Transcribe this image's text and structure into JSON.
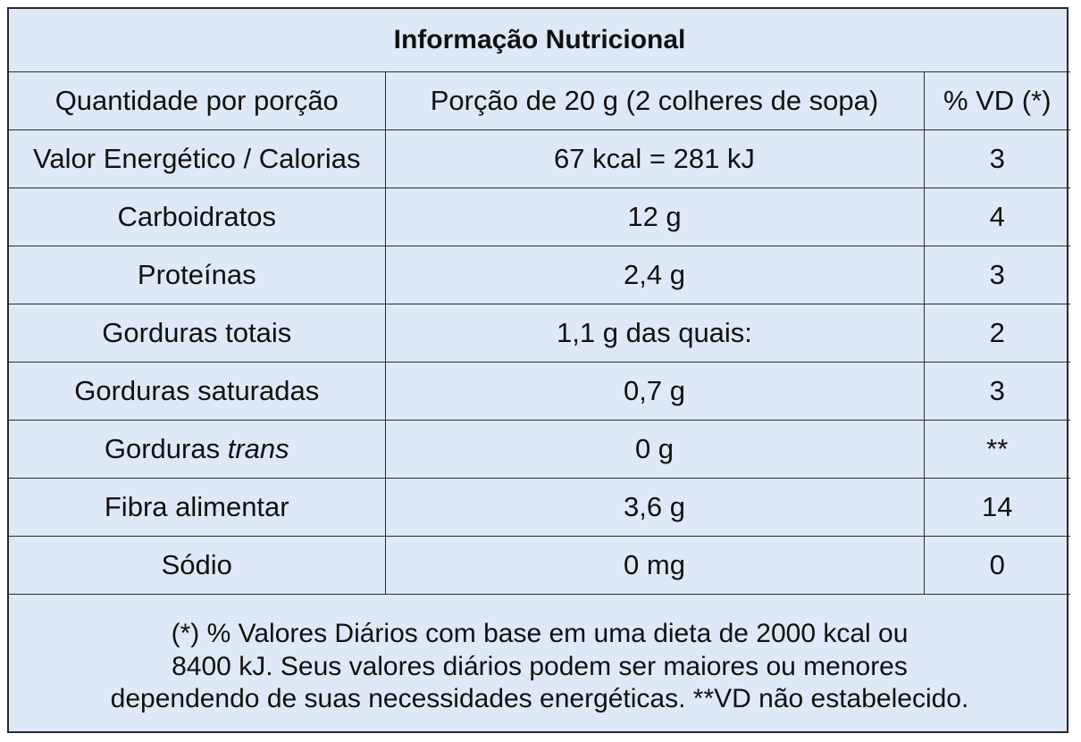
{
  "title": "Informação Nutricional",
  "header": {
    "col1": "Quantidade por porção",
    "col2": "Porção de 20 g (2 colheres de sopa)",
    "col3": "% VD (*)"
  },
  "rows": [
    {
      "label": "Valor Energético / Calorias",
      "amount": "67 kcal = 281 kJ",
      "vd": "3"
    },
    {
      "label": "Carboidratos",
      "amount": "12 g",
      "vd": "4"
    },
    {
      "label": "Proteínas",
      "amount": "2,4 g",
      "vd": "3"
    },
    {
      "label": "Gorduras totais",
      "amount": "1,1 g das quais:",
      "vd": "2"
    },
    {
      "label": "Gorduras saturadas",
      "amount": "0,7 g",
      "vd": "3"
    },
    {
      "label_prefix": "Gorduras",
      "label_italic": "trans",
      "amount": "0 g",
      "vd": "**"
    },
    {
      "label": "Fibra alimentar",
      "amount": "3,6 g",
      "vd": "14"
    },
    {
      "label": "Sódio",
      "amount": "0 mg",
      "vd": "0"
    }
  ],
  "footnote": {
    "line1": "(*) % Valores Diários com base em uma dieta de 2000 kcal ou",
    "line2": "8400 kJ. Seus valores diários podem ser maiores ou menores",
    "line3": "dependendo de suas necessidades energéticas. **VD não estabelecido."
  }
}
